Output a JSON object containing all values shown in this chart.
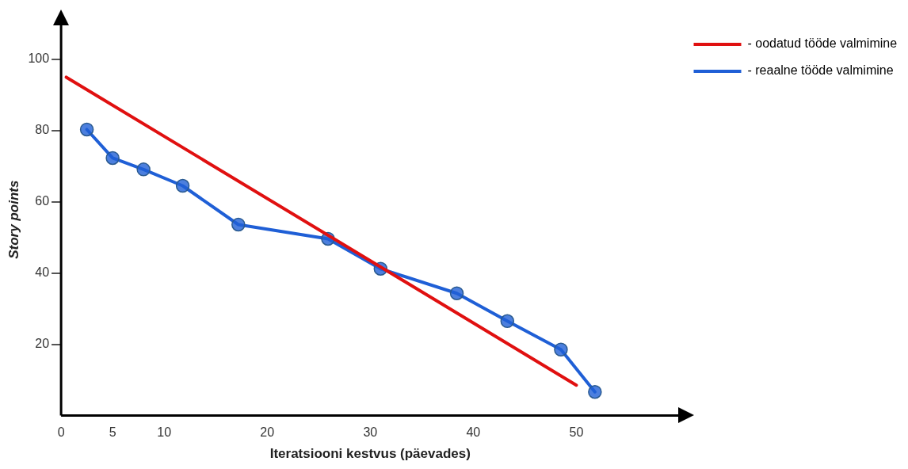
{
  "chart_data": {
    "type": "line",
    "xlabel": "Iteratsiooni kestvus (päevades)",
    "ylabel": "Story points",
    "xlim": [
      0,
      60
    ],
    "xticks": [
      0,
      5,
      10,
      20,
      30,
      40,
      50
    ],
    "ylim": [
      0,
      110
    ],
    "yticks": [
      20,
      40,
      60,
      80,
      100
    ],
    "grid": false,
    "legend": "top right",
    "line_style": "solid",
    "series": [
      {
        "name": "- oodatud tööde valmimine",
        "color": "#e01010",
        "marker": "none",
        "x": [
          0.5,
          50
        ],
        "values": [
          95,
          8.5
        ]
      },
      {
        "name": "- reaalne tööde valmimine",
        "color": "#1f5fd6",
        "marker": "circle",
        "x": [
          2.5,
          5,
          8,
          11.8,
          17.2,
          25.9,
          31,
          38.4,
          43.3,
          48.5,
          51.8
        ],
        "values": [
          80.3,
          72.3,
          69.1,
          64.5,
          53.6,
          49.6,
          41.2,
          34.3,
          26.5,
          18.5,
          6.6
        ]
      }
    ]
  }
}
